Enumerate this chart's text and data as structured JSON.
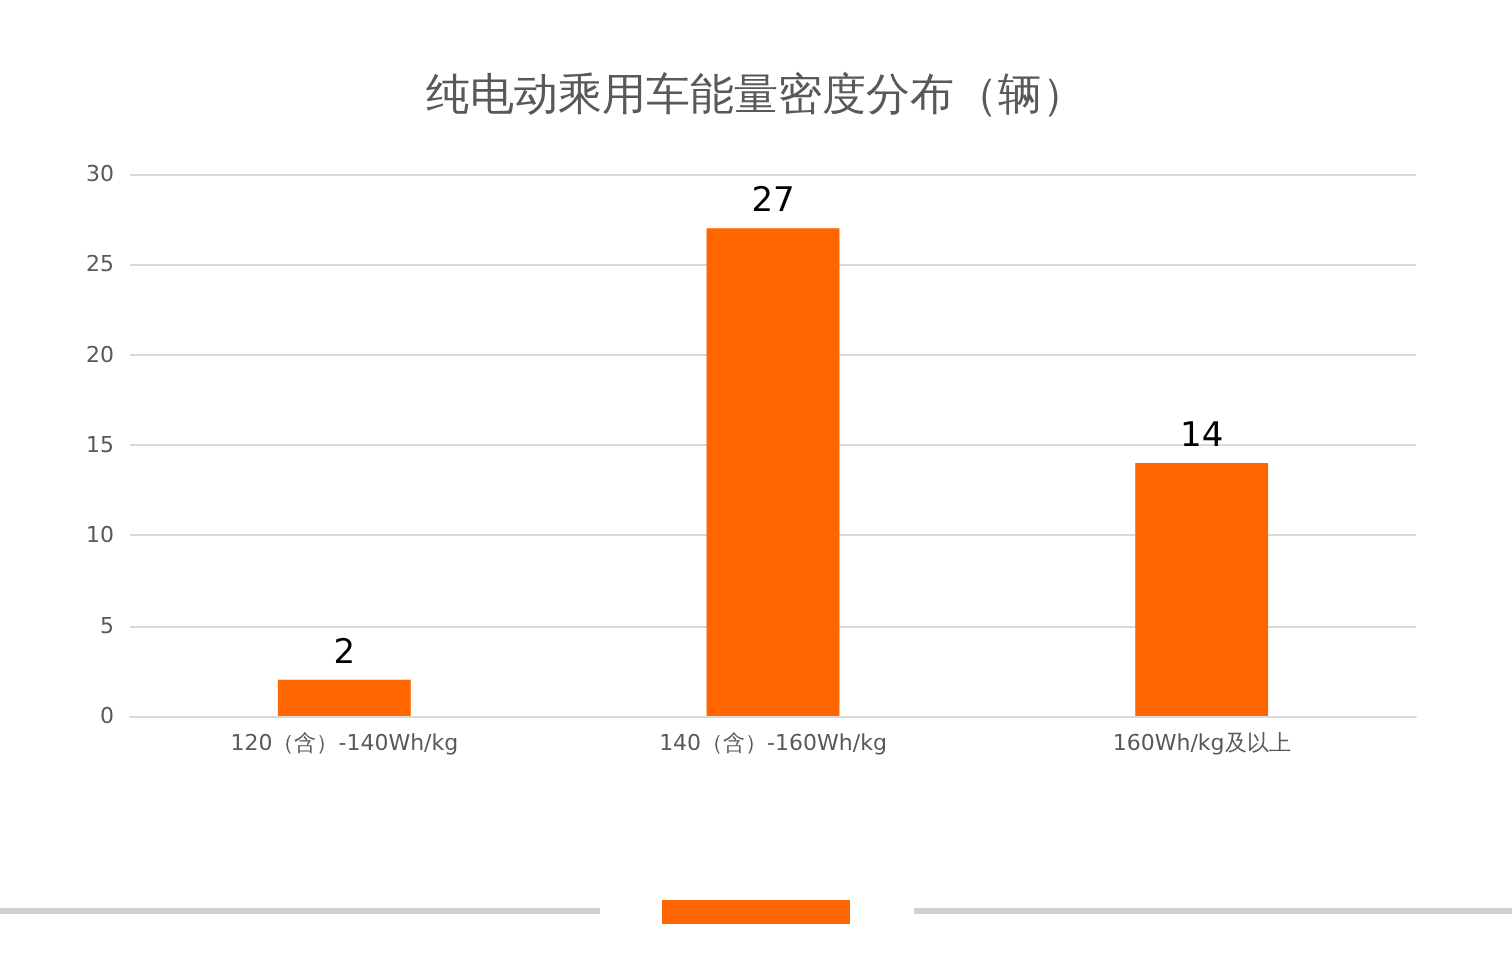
{
  "chart_data": {
    "type": "bar",
    "title": "纯电动乘用车能量密度分布（辆）",
    "categories": [
      "120（含）-140Wh/kg",
      "140（含）-160Wh/kg",
      "160Wh/kg及以上"
    ],
    "values": [
      2,
      27,
      14
    ],
    "color": "#ff6600",
    "ylim": [
      0,
      30
    ],
    "yticks": [
      0,
      5,
      10,
      15,
      20,
      25,
      30
    ],
    "grid": "y",
    "data_labels": true
  }
}
